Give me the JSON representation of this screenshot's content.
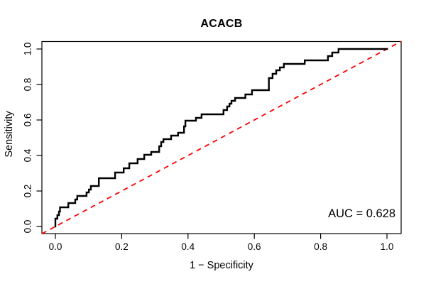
{
  "title": "ACACB",
  "x_axis": {
    "label": "1 − Specificity",
    "tick_labels": [
      "0.0",
      "0.2",
      "0.4",
      "0.6",
      "0.8",
      "1.0"
    ],
    "tick_values": [
      0,
      0.2,
      0.4,
      0.6,
      0.8,
      1
    ],
    "range": [
      0,
      1
    ]
  },
  "y_axis": {
    "label": "Sensitivity",
    "tick_labels": [
      "0.0",
      "0.2",
      "0.4",
      "0.6",
      "0.8",
      "1.0"
    ],
    "tick_values": [
      0,
      0.2,
      0.4,
      0.6,
      0.8,
      1
    ],
    "range": [
      0,
      1
    ]
  },
  "annotation": {
    "auc_label": "AUC = 0.628",
    "auc_value": 0.628
  },
  "colors": {
    "roc_curve": "#000000",
    "diagonal": "#ff0000",
    "axis": "#000000",
    "background": "#ffffff"
  },
  "chart_data": {
    "type": "line",
    "title": "ACACB",
    "xlabel": "1 − Specificity",
    "ylabel": "Sensitivity",
    "xlim": [
      0,
      1
    ],
    "ylim": [
      0,
      1
    ],
    "grid": false,
    "legend": "none",
    "auc": 0.628,
    "series": [
      {
        "name": "ROC curve",
        "color": "#000000",
        "line_style": "solid",
        "line_width": 2.4,
        "points": [
          [
            0,
            0
          ],
          [
            0,
            0.044
          ],
          [
            0.006,
            0.044
          ],
          [
            0.006,
            0.064
          ],
          [
            0.011,
            0.064
          ],
          [
            0.011,
            0.084
          ],
          [
            0.014,
            0.084
          ],
          [
            0.014,
            0.108
          ],
          [
            0.039,
            0.108
          ],
          [
            0.039,
            0.132
          ],
          [
            0.06,
            0.132
          ],
          [
            0.06,
            0.152
          ],
          [
            0.066,
            0.152
          ],
          [
            0.066,
            0.172
          ],
          [
            0.094,
            0.172
          ],
          [
            0.094,
            0.192
          ],
          [
            0.101,
            0.192
          ],
          [
            0.101,
            0.208
          ],
          [
            0.107,
            0.208
          ],
          [
            0.107,
            0.228
          ],
          [
            0.131,
            0.228
          ],
          [
            0.131,
            0.272
          ],
          [
            0.18,
            0.272
          ],
          [
            0.18,
            0.304
          ],
          [
            0.206,
            0.304
          ],
          [
            0.206,
            0.328
          ],
          [
            0.223,
            0.328
          ],
          [
            0.223,
            0.356
          ],
          [
            0.248,
            0.356
          ],
          [
            0.248,
            0.38
          ],
          [
            0.268,
            0.38
          ],
          [
            0.268,
            0.404
          ],
          [
            0.289,
            0.404
          ],
          [
            0.289,
            0.42
          ],
          [
            0.313,
            0.42
          ],
          [
            0.313,
            0.452
          ],
          [
            0.319,
            0.452
          ],
          [
            0.319,
            0.476
          ],
          [
            0.326,
            0.476
          ],
          [
            0.326,
            0.492
          ],
          [
            0.349,
            0.492
          ],
          [
            0.349,
            0.512
          ],
          [
            0.37,
            0.512
          ],
          [
            0.37,
            0.528
          ],
          [
            0.388,
            0.528
          ],
          [
            0.388,
            0.564
          ],
          [
            0.392,
            0.564
          ],
          [
            0.392,
            0.596
          ],
          [
            0.424,
            0.596
          ],
          [
            0.424,
            0.612
          ],
          [
            0.441,
            0.612
          ],
          [
            0.441,
            0.632
          ],
          [
            0.507,
            0.632
          ],
          [
            0.507,
            0.656
          ],
          [
            0.518,
            0.656
          ],
          [
            0.518,
            0.676
          ],
          [
            0.525,
            0.676
          ],
          [
            0.525,
            0.692
          ],
          [
            0.531,
            0.692
          ],
          [
            0.531,
            0.708
          ],
          [
            0.542,
            0.708
          ],
          [
            0.542,
            0.724
          ],
          [
            0.573,
            0.724
          ],
          [
            0.573,
            0.744
          ],
          [
            0.593,
            0.744
          ],
          [
            0.593,
            0.768
          ],
          [
            0.644,
            0.768
          ],
          [
            0.644,
            0.836
          ],
          [
            0.655,
            0.836
          ],
          [
            0.655,
            0.86
          ],
          [
            0.666,
            0.86
          ],
          [
            0.666,
            0.88
          ],
          [
            0.677,
            0.88
          ],
          [
            0.677,
            0.896
          ],
          [
            0.689,
            0.896
          ],
          [
            0.689,
            0.916
          ],
          [
            0.752,
            0.916
          ],
          [
            0.752,
            0.936
          ],
          [
            0.822,
            0.936
          ],
          [
            0.822,
            0.96
          ],
          [
            0.835,
            0.96
          ],
          [
            0.835,
            0.98
          ],
          [
            0.854,
            0.98
          ],
          [
            0.854,
            1
          ],
          [
            1,
            1
          ]
        ]
      },
      {
        "name": "Chance diagonal",
        "color": "#ff0000",
        "line_style": "dashed",
        "line_width": 1.8,
        "points": [
          [
            0,
            0
          ],
          [
            1,
            1
          ]
        ]
      }
    ]
  }
}
